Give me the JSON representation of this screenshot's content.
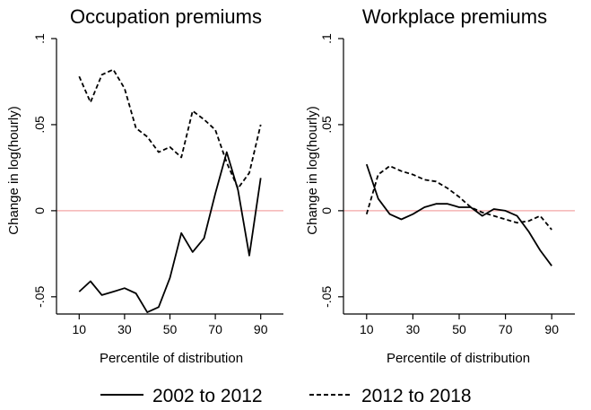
{
  "chart_data": [
    {
      "type": "line",
      "title": "Occupation premiums",
      "xlabel": "Percentile of distribution",
      "ylabel": "Change in log(hourly)",
      "xlim": [
        0,
        100
      ],
      "ylim": [
        -0.06,
        0.1
      ],
      "xticks": [
        10,
        30,
        50,
        70,
        90
      ],
      "xtick_labels": [
        "10",
        "30",
        "50",
        "70",
        "90"
      ],
      "yticks": [
        -0.05,
        0,
        0.05,
        0.1
      ],
      "ytick_labels": [
        "-.05",
        "0",
        ".05",
        ".1"
      ],
      "reference_line": {
        "y": 0,
        "color": "#f4a6a6"
      },
      "series": [
        {
          "name": "2002 to 2012",
          "style": "solid",
          "x": [
            10,
            15,
            20,
            25,
            30,
            35,
            40,
            45,
            50,
            55,
            60,
            65,
            70,
            75,
            80,
            85,
            90
          ],
          "y": [
            -0.047,
            -0.041,
            -0.049,
            -0.047,
            -0.045,
            -0.048,
            -0.059,
            -0.056,
            -0.039,
            -0.013,
            -0.024,
            -0.016,
            0.01,
            0.034,
            0.012,
            -0.026,
            0.019
          ]
        },
        {
          "name": "2012 to 2018",
          "style": "dashed",
          "x": [
            10,
            15,
            20,
            25,
            30,
            35,
            40,
            45,
            50,
            55,
            60,
            65,
            70,
            75,
            80,
            85,
            90
          ],
          "y": [
            0.078,
            0.063,
            0.079,
            0.082,
            0.071,
            0.048,
            0.043,
            0.034,
            0.037,
            0.031,
            0.058,
            0.053,
            0.047,
            0.028,
            0.013,
            0.022,
            0.05
          ]
        }
      ]
    },
    {
      "type": "line",
      "title": "Workplace premiums",
      "xlabel": "Percentile of distribution",
      "ylabel": "Change in log(hourly)",
      "xlim": [
        0,
        100
      ],
      "ylim": [
        -0.06,
        0.1
      ],
      "xticks": [
        10,
        30,
        50,
        70,
        90
      ],
      "xtick_labels": [
        "10",
        "30",
        "50",
        "70",
        "90"
      ],
      "yticks": [
        -0.05,
        0,
        0.05,
        0.1
      ],
      "ytick_labels": [
        "-.05",
        "0",
        ".05",
        ".1"
      ],
      "reference_line": {
        "y": 0,
        "color": "#f4a6a6"
      },
      "series": [
        {
          "name": "2002 to 2012",
          "style": "solid",
          "x": [
            10,
            15,
            20,
            25,
            30,
            35,
            40,
            45,
            50,
            55,
            60,
            65,
            70,
            75,
            80,
            85,
            90
          ],
          "y": [
            0.027,
            0.007,
            -0.002,
            -0.005,
            -0.002,
            0.002,
            0.004,
            0.004,
            0.002,
            0.002,
            -0.003,
            0.001,
            0.0,
            -0.003,
            -0.012,
            -0.023,
            -0.032
          ]
        },
        {
          "name": "2012 to 2018",
          "style": "dashed",
          "x": [
            10,
            15,
            20,
            25,
            30,
            35,
            40,
            45,
            50,
            55,
            60,
            65,
            70,
            75,
            80,
            85,
            90
          ],
          "y": [
            -0.002,
            0.021,
            0.026,
            0.023,
            0.021,
            0.018,
            0.017,
            0.013,
            0.008,
            0.002,
            -0.001,
            -0.003,
            -0.005,
            -0.007,
            -0.006,
            -0.003,
            -0.011
          ]
        }
      ]
    }
  ],
  "legend": {
    "placement": "bottom",
    "entries": [
      {
        "label": "2002 to 2012",
        "style": "solid"
      },
      {
        "label": "2012 to 2018",
        "style": "dashed"
      }
    ]
  }
}
